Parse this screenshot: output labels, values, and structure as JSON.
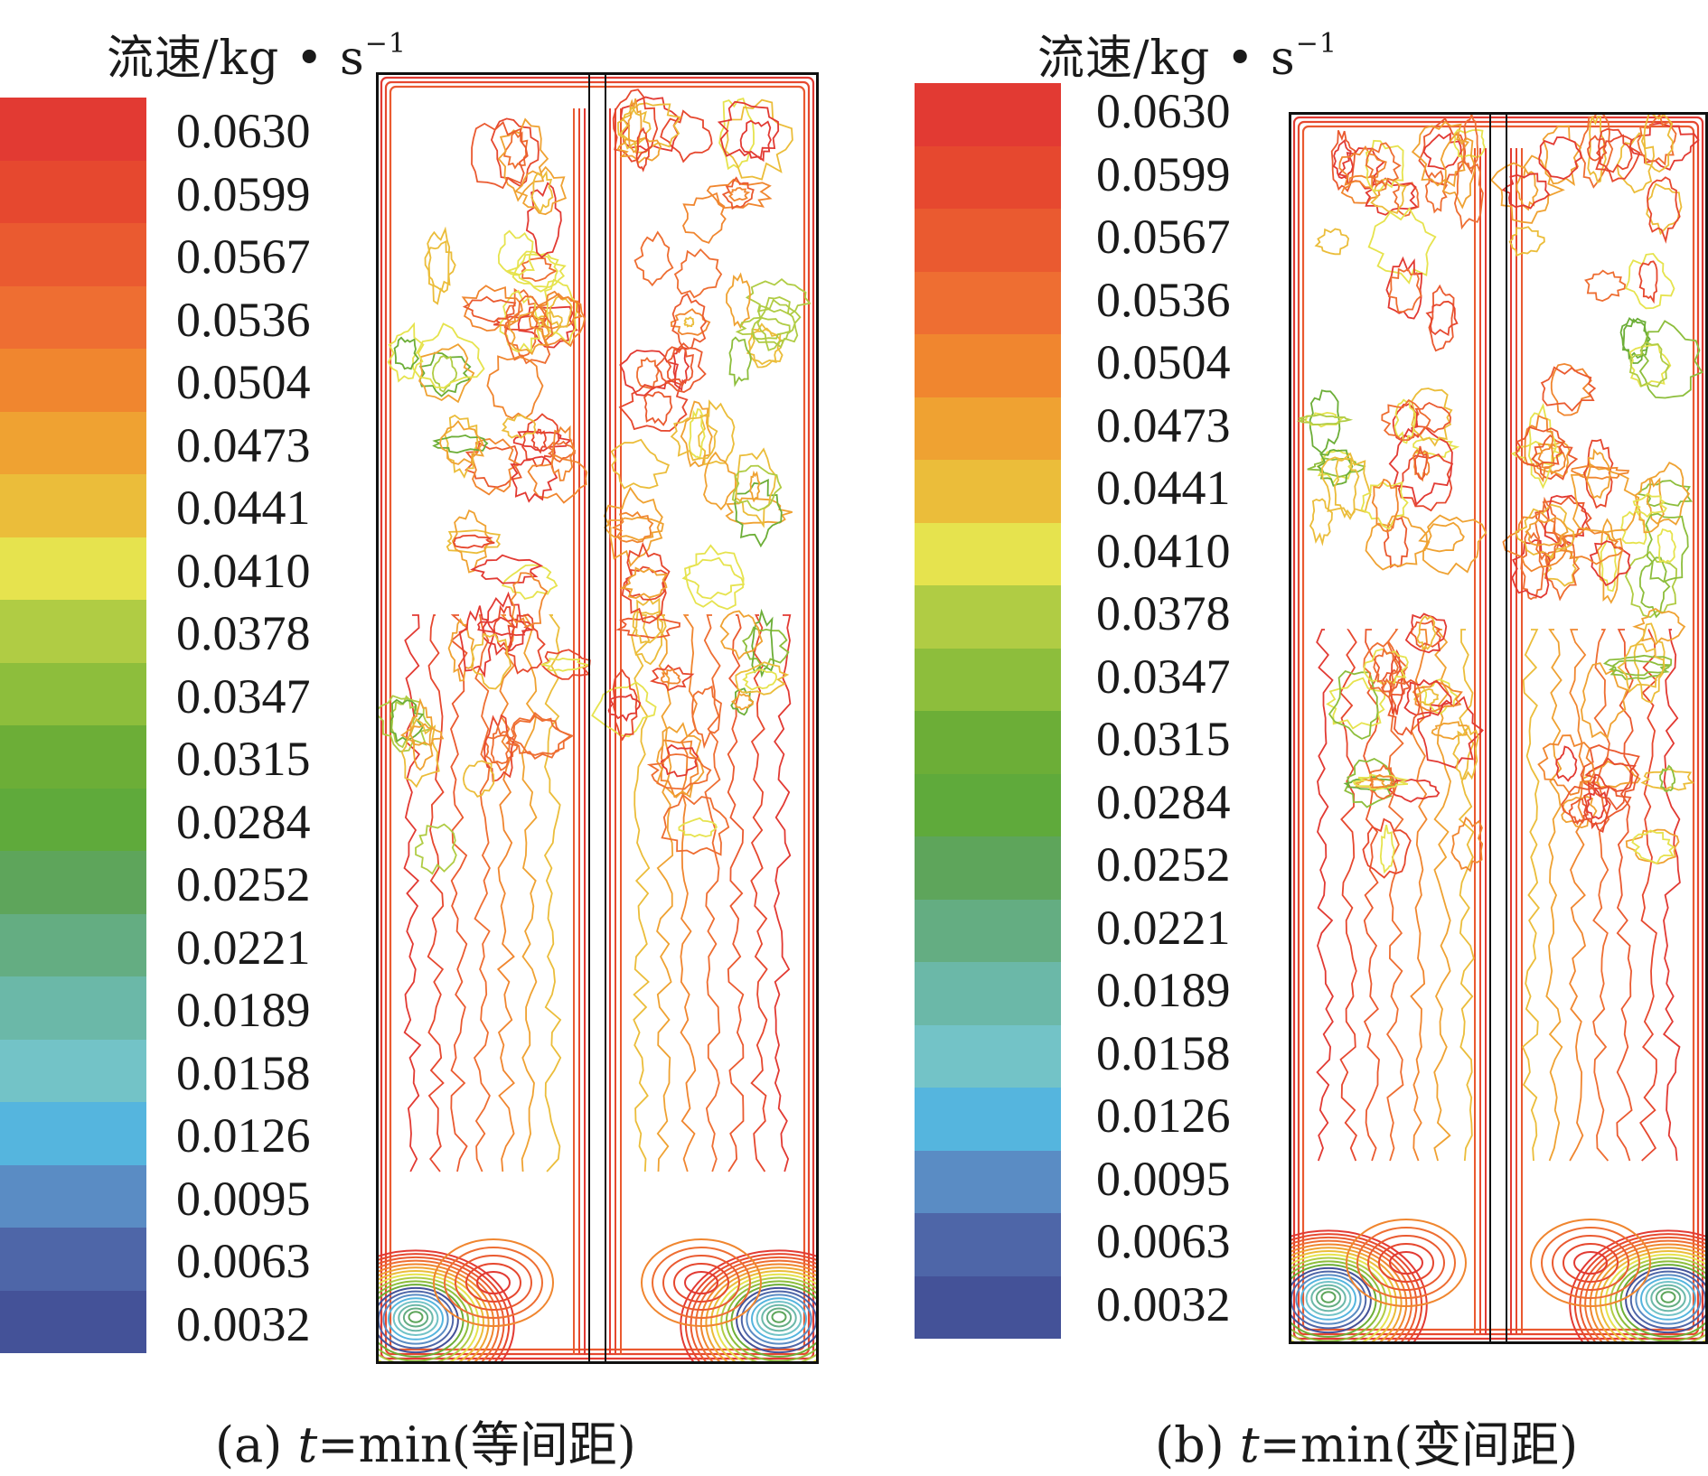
{
  "panels": [
    {
      "legend_title": "流速/kg • s",
      "legend_exponent": "−1",
      "legend_labels": [
        "0.0630",
        "0.0599",
        "0.0567",
        "0.0536",
        "0.0504",
        "0.0473",
        "0.0441",
        "0.0410",
        "0.0378",
        "0.0347",
        "0.0315",
        "0.0284",
        "0.0252",
        "0.0221",
        "0.0189",
        "0.0158",
        "0.0126",
        "0.0095",
        "0.0063",
        "0.0032"
      ],
      "caption_prefix": "(a) ",
      "caption_var": "t",
      "caption_rest": "=min(等间距)"
    },
    {
      "legend_title": "流速/kg • s",
      "legend_exponent": "−1",
      "legend_labels": [
        "0.0630",
        "0.0599",
        "0.0567",
        "0.0536",
        "0.0504",
        "0.0473",
        "0.0441",
        "0.0410",
        "0.0378",
        "0.0347",
        "0.0315",
        "0.0284",
        "0.0252",
        "0.0221",
        "0.0189",
        "0.0158",
        "0.0126",
        "0.0095",
        "0.0063",
        "0.0032"
      ],
      "caption_prefix": "(b) ",
      "caption_var": "t",
      "caption_rest": "=min(变间距)"
    }
  ],
  "colors": {
    "scale": [
      "#e23a33",
      "#e6482f",
      "#ea5a30",
      "#ee6e32",
      "#f0862f",
      "#efa232",
      "#ebbd3a",
      "#e6e34e",
      "#b0cc44",
      "#8dbe3c",
      "#6cae37",
      "#5faa3b",
      "#5ea55b",
      "#64ad82",
      "#6bb8a8",
      "#73c3c7",
      "#55b5de",
      "#5a8cc4",
      "#4e66a8",
      "#445298"
    ],
    "outline": "#111111"
  }
}
